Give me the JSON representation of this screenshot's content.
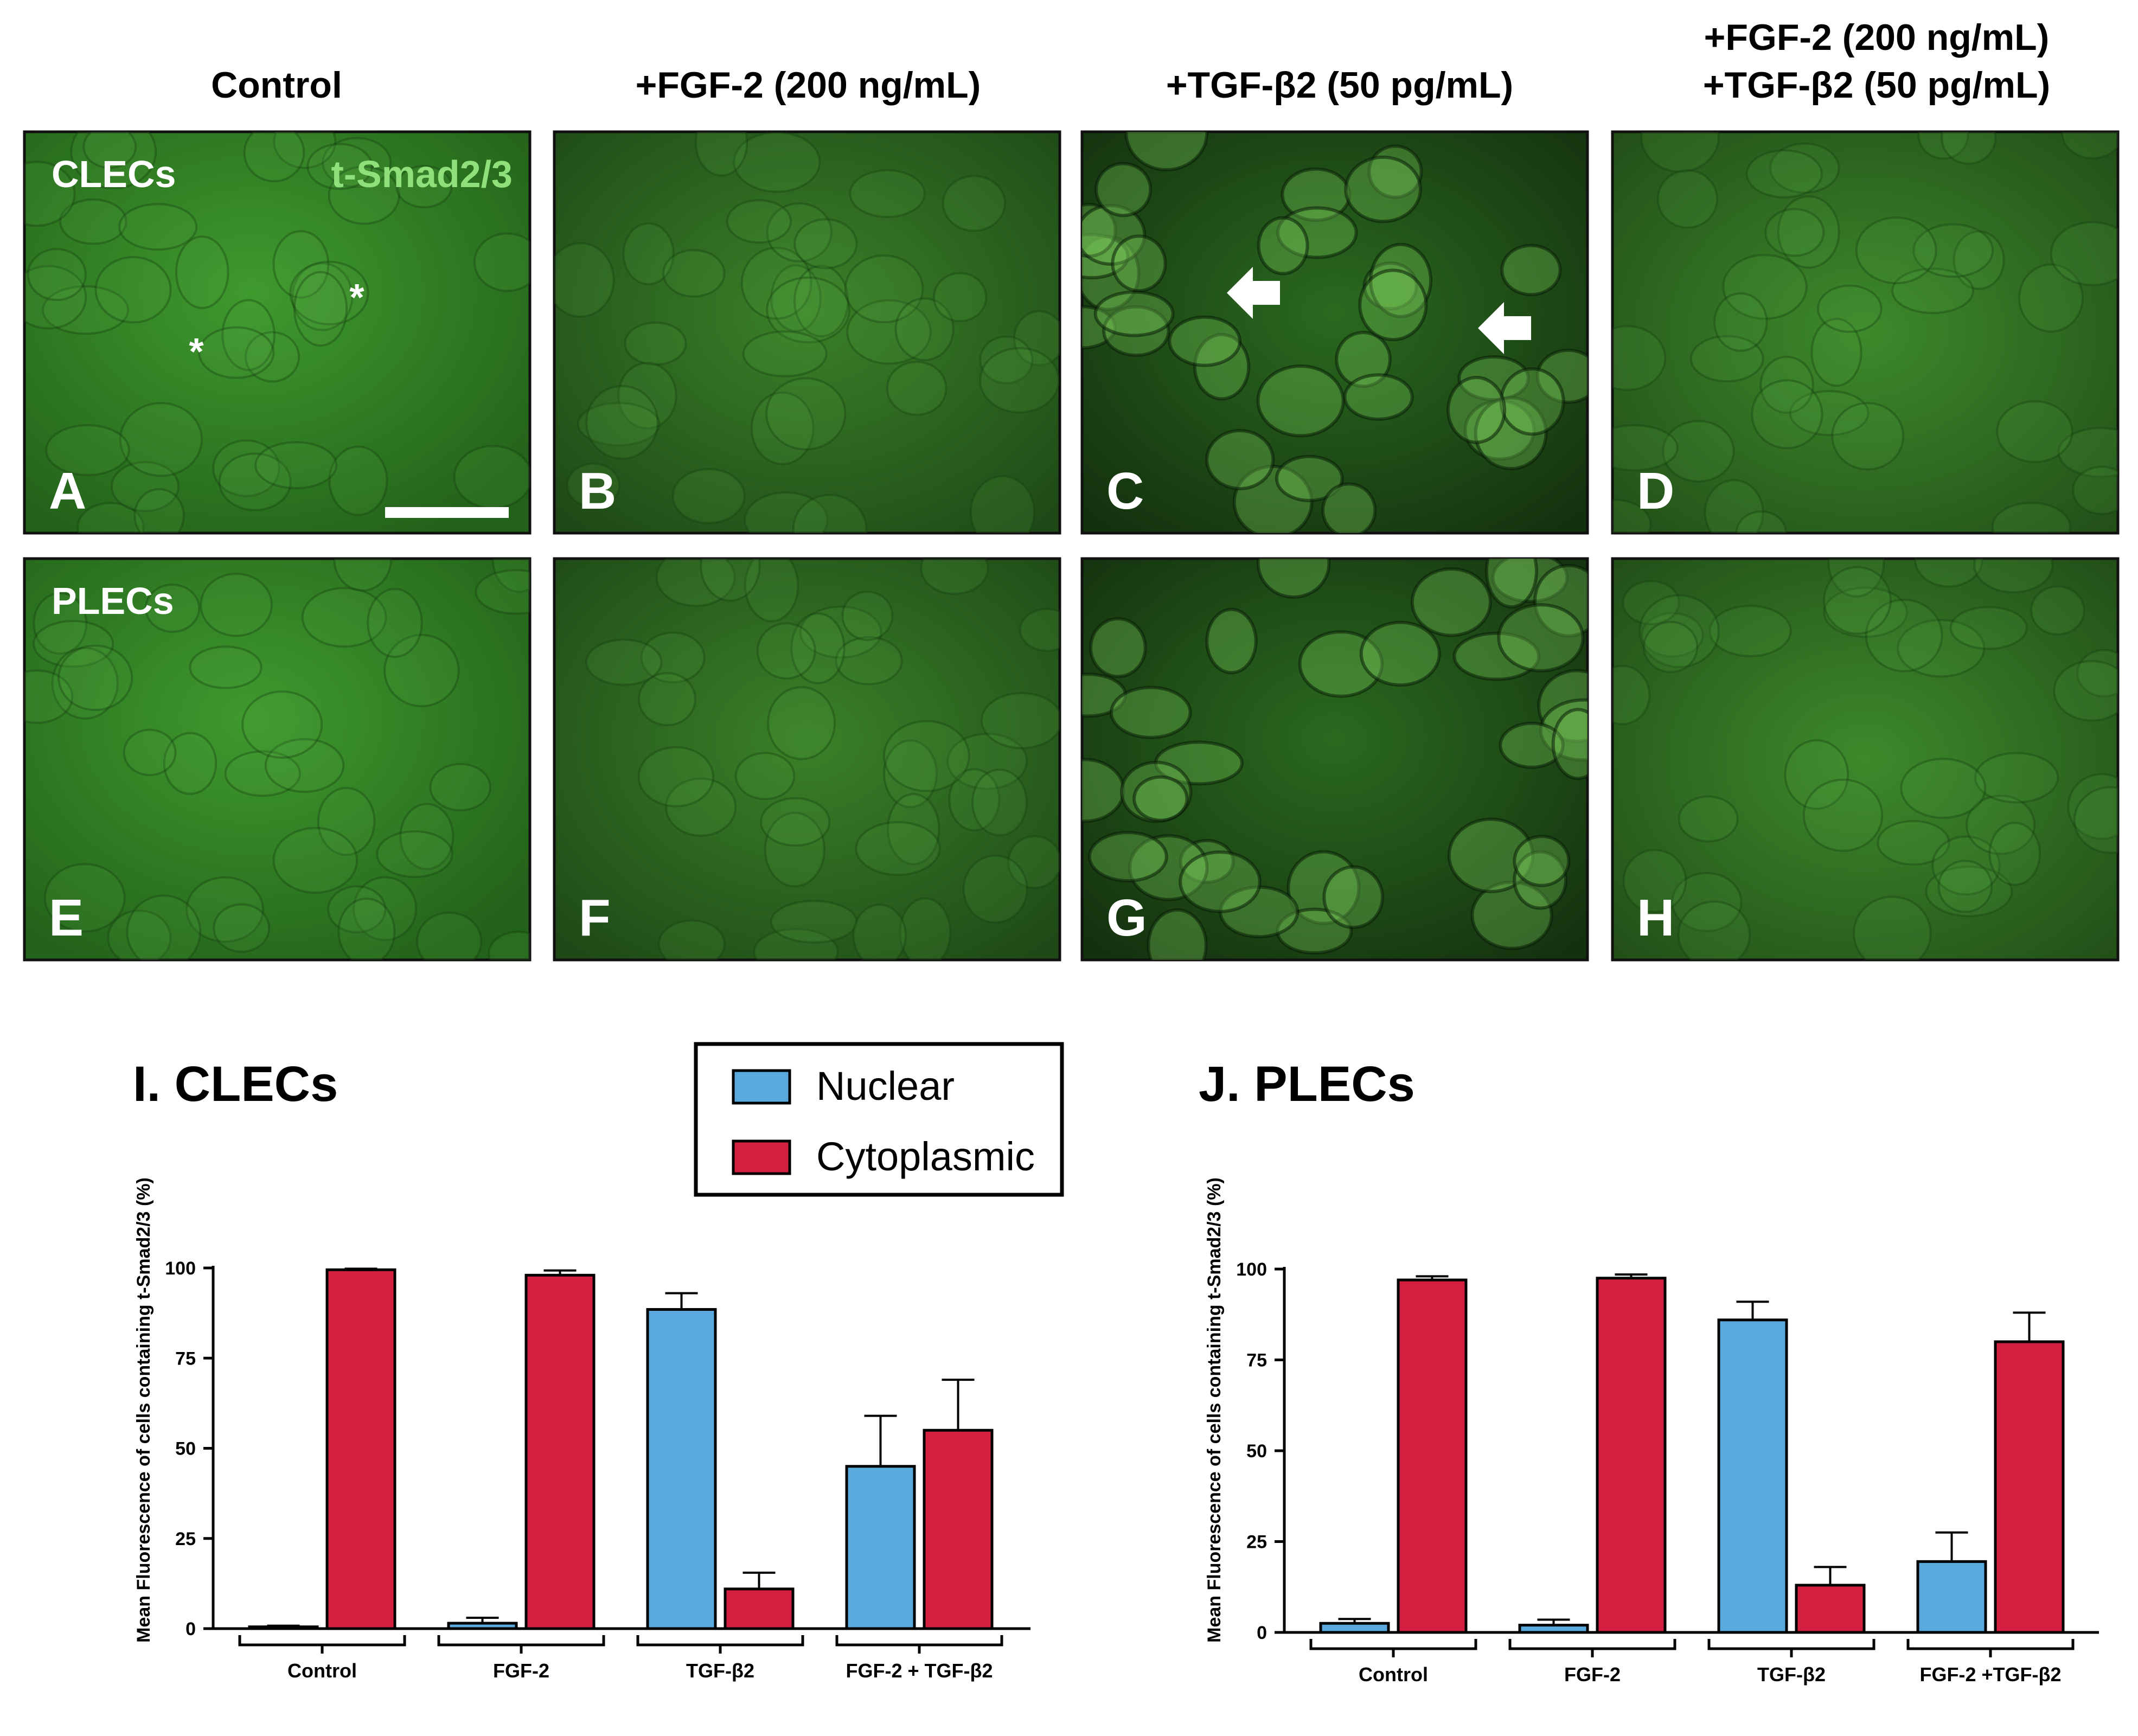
{
  "columns": [
    {
      "lines": [
        "Control"
      ]
    },
    {
      "lines": [
        "+FGF-2 (200 ng/mL)"
      ]
    },
    {
      "lines": [
        "+TGF-β2 (50 pg/mL)"
      ]
    },
    {
      "lines": [
        "+FGF-2 (200 ng/mL)",
        "+TGF-β2 (50 pg/mL)"
      ]
    }
  ],
  "rows": [
    "CLECs",
    "PLECs"
  ],
  "stain_label": "t-Smad2/3",
  "panels": [
    "A",
    "B",
    "C",
    "D",
    "E",
    "F",
    "G",
    "H"
  ],
  "legend": {
    "nuclear": "Nuclear",
    "cytoplasmic": "Cytoplasmic"
  },
  "colors": {
    "nuclear": "#5aa9dd",
    "cytoplasmic": "#d32040",
    "micrograph_dark": "#163a12",
    "micrograph_green": "#3f8d2c"
  },
  "chart_data": [
    {
      "type": "bar",
      "title": "I. CLECs",
      "ylabel": "Mean Fluorescence of cells containing t-Smad2/3 (%)",
      "categories": [
        "Control",
        "FGF-2",
        "TGF-β2",
        "FGF-2 + TGF-β2"
      ],
      "ylim": [
        0,
        100
      ],
      "yticks": [
        0,
        25,
        50,
        75,
        100
      ],
      "series": [
        {
          "name": "Nuclear",
          "values": [
            0.5,
            1.5,
            88.5,
            45
          ],
          "errors": [
            0.3,
            1.5,
            4.5,
            14
          ]
        },
        {
          "name": "Cytoplasmic",
          "values": [
            99.5,
            98,
            11,
            55
          ],
          "errors": [
            0.3,
            1.3,
            4.5,
            14
          ]
        }
      ]
    },
    {
      "type": "bar",
      "title": "J. PLECs",
      "ylabel": "Mean Fluorescence of cells containing t-Smad2/3 (%)",
      "categories": [
        "Control",
        "FGF-2",
        "TGF-β2",
        "FGF-2 +TGF-β2"
      ],
      "ylim": [
        0,
        100
      ],
      "yticks": [
        0,
        25,
        50,
        75,
        100
      ],
      "series": [
        {
          "name": "Nuclear",
          "values": [
            2.5,
            2,
            86,
            19.5
          ],
          "errors": [
            1.2,
            1.5,
            5,
            8
          ]
        },
        {
          "name": "Cytoplasmic",
          "values": [
            97,
            97.5,
            13,
            80
          ],
          "errors": [
            1,
            1,
            5,
            8
          ]
        }
      ]
    }
  ]
}
